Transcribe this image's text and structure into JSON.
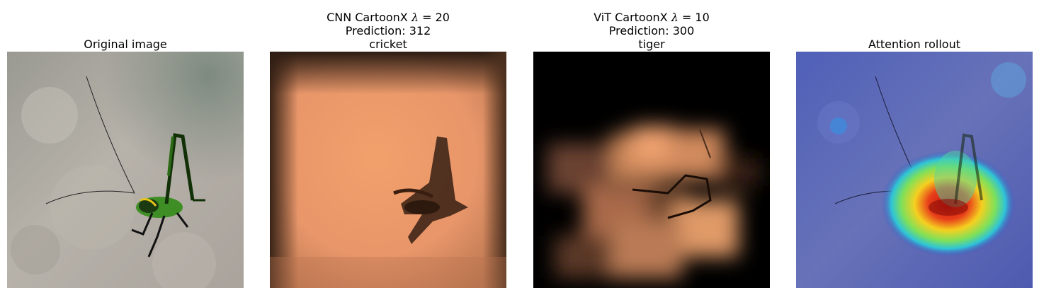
{
  "panels": [
    {
      "title_lines": [
        "Original image"
      ]
    },
    {
      "title_prefix": "CNN CartoonX ",
      "lambda_symbol": "λ",
      "lambda_value": " = 20",
      "title_lines": [
        "Prediction: 312",
        "cricket"
      ]
    },
    {
      "title_prefix": "ViT CartoonX ",
      "lambda_symbol": "λ",
      "lambda_value": " = 10",
      "title_lines": [
        "Prediction: 300",
        "tiger"
      ]
    },
    {
      "title_lines": [
        "Attention rollout"
      ]
    }
  ],
  "colors": {
    "copper_dark": "#000000",
    "copper_light": "#f5a06a",
    "rollout_base": "#3b4fc4",
    "rollout_hot": "#d01810"
  }
}
